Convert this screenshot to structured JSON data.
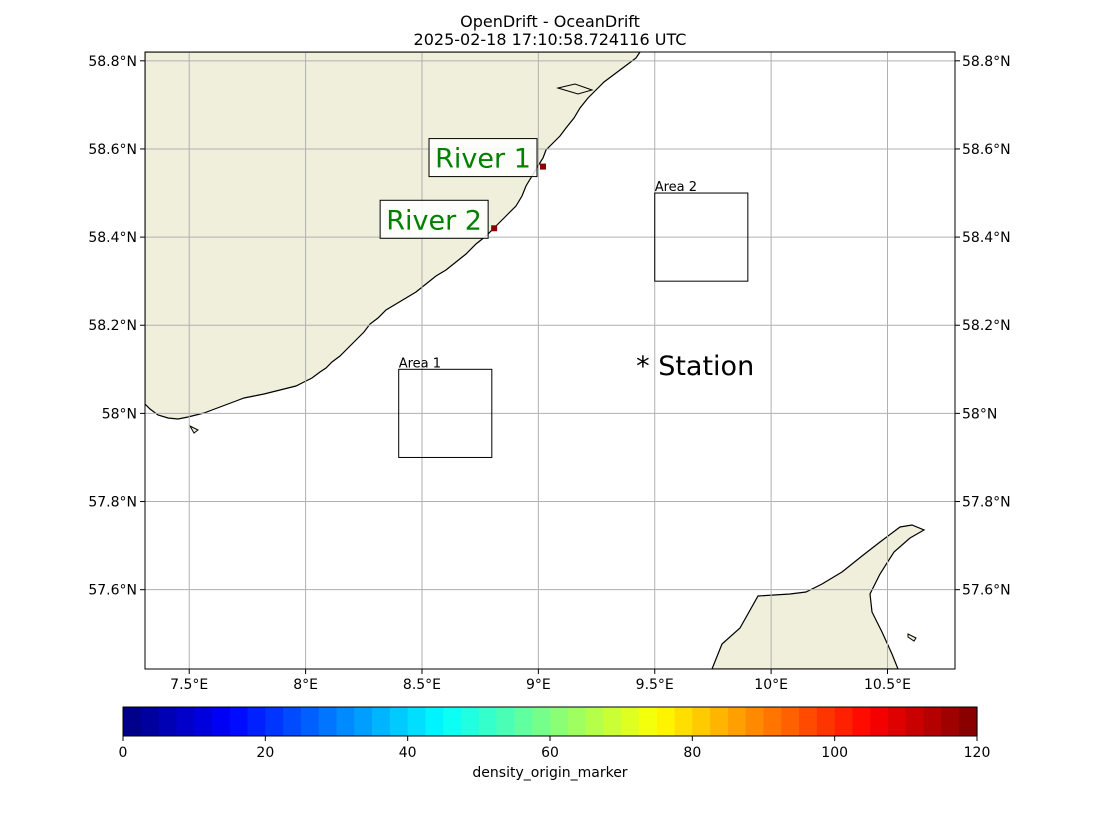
{
  "title": {
    "line1": "OpenDrift - OceanDrift",
    "line2": "2025-02-18 17:10:58.724116 UTC"
  },
  "map": {
    "lon_range": [
      7.31,
      10.79
    ],
    "lat_range": [
      57.42,
      58.82
    ],
    "grid": true,
    "land_color": "#efefdb",
    "coast_color": "#000000",
    "grid_color": "#b0b0b0"
  },
  "axes": {
    "x_ticks": [
      {
        "value": 7.5,
        "label": "7.5°E"
      },
      {
        "value": 8.0,
        "label": "8°E"
      },
      {
        "value": 8.5,
        "label": "8.5°E"
      },
      {
        "value": 9.0,
        "label": "9°E"
      },
      {
        "value": 9.5,
        "label": "9.5°E"
      },
      {
        "value": 10.0,
        "label": "10°E"
      },
      {
        "value": 10.5,
        "label": "10.5°E"
      }
    ],
    "y_ticks": [
      {
        "value": 57.6,
        "label": "57.6°N"
      },
      {
        "value": 57.8,
        "label": "57.8°N"
      },
      {
        "value": 58.0,
        "label": "58°N"
      },
      {
        "value": 58.2,
        "label": "58.2°N"
      },
      {
        "value": 58.4,
        "label": "58.4°N"
      },
      {
        "value": 58.6,
        "label": "58.6°N"
      },
      {
        "value": 58.8,
        "label": "58.8°N"
      }
    ]
  },
  "areas": [
    {
      "label": "Area 1",
      "lon_min": 8.4,
      "lon_max": 8.8,
      "lat_min": 57.9,
      "lat_max": 58.1
    },
    {
      "label": "Area 2",
      "lon_min": 9.5,
      "lon_max": 9.9,
      "lat_min": 58.3,
      "lat_max": 58.5
    }
  ],
  "rivers": [
    {
      "label": "River 1",
      "lon": 9.02,
      "lat": 58.56,
      "color": "#008000",
      "marker_color": "#8b0000"
    },
    {
      "label": "River 2",
      "lon": 8.81,
      "lat": 58.42,
      "color": "#008000",
      "marker_color": "#8b0000"
    }
  ],
  "station": {
    "label": "* Station",
    "lon": 9.42,
    "lat": 58.11
  },
  "colorbar": {
    "label": "density_origin_marker",
    "min": 0,
    "max": 120,
    "levels": 48,
    "colormap": "jet",
    "ticks": [
      {
        "value": 0,
        "label": "0"
      },
      {
        "value": 20,
        "label": "20"
      },
      {
        "value": 40,
        "label": "40"
      },
      {
        "value": 60,
        "label": "60"
      },
      {
        "value": 80,
        "label": "80"
      },
      {
        "value": 100,
        "label": "100"
      },
      {
        "value": 120,
        "label": "120"
      }
    ]
  }
}
